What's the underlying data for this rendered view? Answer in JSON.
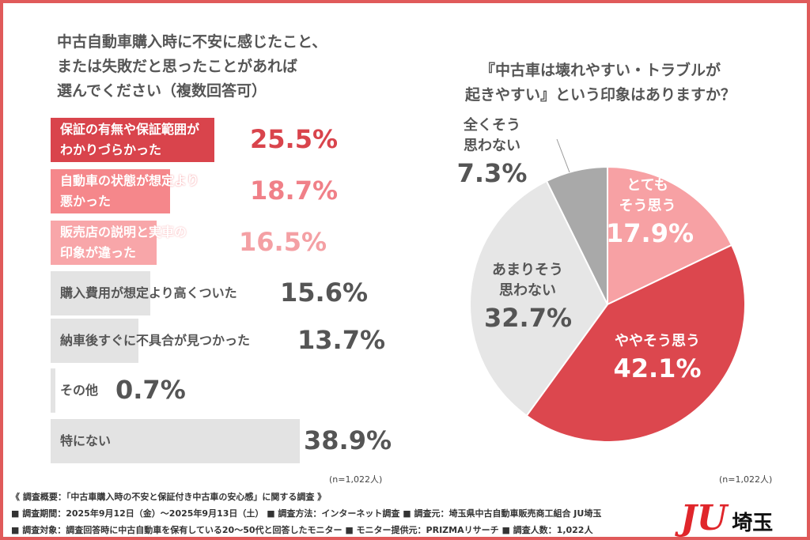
{
  "left_chart": {
    "title_lines": [
      "中古自動車購入時に不安に感じたこと、",
      "または失敗だと思ったことがあれば",
      "選んでください（複数回答可）"
    ],
    "n_label": "(n=1,022人)"
  },
  "right_chart": {
    "title_lines": [
      "『中古車は壊れやすい・トラブルが",
      "起きやすい』という印象はありますか？"
    ],
    "n_label": "(n=1,022人)"
  },
  "chart_data": [
    {
      "type": "bar",
      "orientation": "horizontal",
      "categories": [
        "保証の有無や保証範囲がわかりづらかった",
        "自動車の状態が想定より悪かった",
        "販売店の説明と実車の印象が違った",
        "購入費用が想定より高くついた",
        "納車後すぐに不具合が見つかった",
        "その他",
        "特にない"
      ],
      "label_lines": [
        [
          "保証の有無や保証範囲が",
          "わかりづらかった"
        ],
        [
          "自動車の状態が想定より",
          "悪かった"
        ],
        [
          "販売店の説明と実車の",
          "印象が違った"
        ],
        [
          "購入費用が想定より高くついた"
        ],
        [
          "納車後すぐに不具合が見つかった"
        ],
        [
          "その他"
        ],
        [
          "特にない"
        ]
      ],
      "values": [
        25.5,
        18.7,
        16.5,
        15.6,
        13.7,
        0.7,
        38.9
      ],
      "value_labels": [
        "25.5%",
        "18.7%",
        "16.5%",
        "15.6%",
        "13.7%",
        "0.7%",
        "38.9%"
      ],
      "colors": [
        "#d9444c",
        "#f5878b",
        "#f8a6a9",
        "#e3e3e3",
        "#e3e3e3",
        "#e3e3e3",
        "#e3e3e3"
      ],
      "text_colors": [
        "#d9444c",
        "#f08088",
        "#f4a0a4",
        "#555555",
        "#555555",
        "#555555",
        "#555555"
      ],
      "unit": "%"
    },
    {
      "type": "pie",
      "categories": [
        "とてもそう思う",
        "ややそう思う",
        "あまりそう思わない",
        "全くそう思わない"
      ],
      "label_lines": [
        [
          "とても",
          "そう思う"
        ],
        [
          "ややそう思う"
        ],
        [
          "あまりそう",
          "思わない"
        ],
        [
          "全くそう",
          "思わない"
        ]
      ],
      "values": [
        17.9,
        42.1,
        32.7,
        7.3
      ],
      "value_labels": [
        "17.9%",
        "42.1%",
        "32.7%",
        "7.3%"
      ],
      "colors": [
        "#f7a1a4",
        "#dc474e",
        "#e6e6e6",
        "#a9a9a9"
      ],
      "unit": "%",
      "start": "top",
      "direction": "clockwise"
    }
  ],
  "footer": {
    "lines": [
      "《 調査概要：「中古車購入時の不安と保証付き中古車の安心感」に関する調査 》",
      "■ 調査期間：2025年9月12日（金）〜2025年9月13日（土） ■ 調査方法：インターネット調査 ■ 調査元：埼玉県中古自動車販売商工組合 JU埼玉",
      "■ 調査対象：調査回答時に中古自動車を保有している20〜50代と回答したモニター ■ モニター提供元：PRIZMAリサーチ ■ 調査人数：1,022人"
    ],
    "logo": "JU埼玉",
    "brand_color": "#e0262b"
  }
}
